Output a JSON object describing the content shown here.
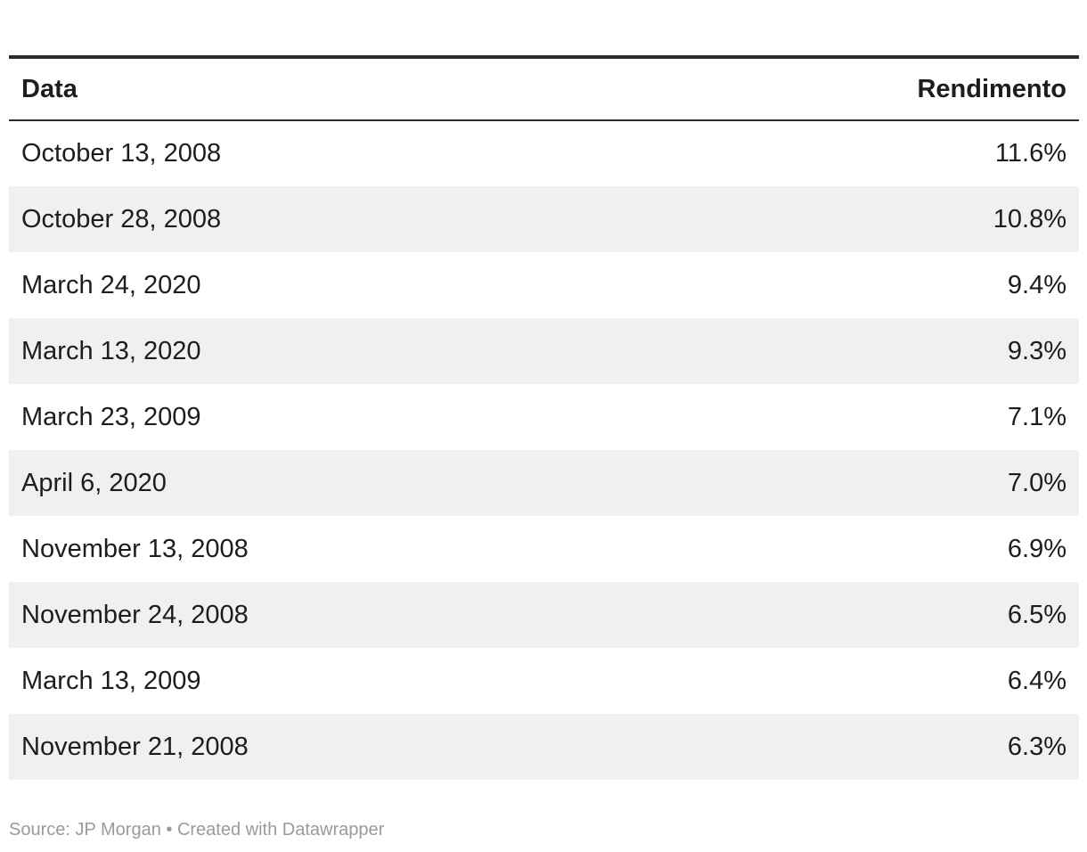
{
  "chart_data": {
    "type": "table",
    "columns": [
      {
        "label": "Data",
        "align": "left"
      },
      {
        "label": "Rendimento",
        "align": "right"
      }
    ],
    "rows": [
      {
        "date": "October 13, 2008",
        "value": "11.6%",
        "value_pct": 11.6
      },
      {
        "date": "October 28, 2008",
        "value": "10.8%",
        "value_pct": 10.8
      },
      {
        "date": "March 24, 2020",
        "value": "9.4%",
        "value_pct": 9.4
      },
      {
        "date": "March 13, 2020",
        "value": "9.3%",
        "value_pct": 9.3
      },
      {
        "date": "March 23, 2009",
        "value": "7.1%",
        "value_pct": 7.1
      },
      {
        "date": "April 6, 2020",
        "value": "7.0%",
        "value_pct": 7.0
      },
      {
        "date": "November 13, 2008",
        "value": "6.9%",
        "value_pct": 6.9
      },
      {
        "date": "November 24, 2008",
        "value": "6.5%",
        "value_pct": 6.5
      },
      {
        "date": "March 13, 2009",
        "value": "6.4%",
        "value_pct": 6.4
      },
      {
        "date": "November 21, 2008",
        "value": "6.3%",
        "value_pct": 6.3
      }
    ]
  },
  "footer": {
    "text": "Source: JP Morgan • Created with Datawrapper"
  },
  "colors": {
    "text": "#1d1d1d",
    "rule": "#2a2a2a",
    "stripe_row": "#f0f0f0",
    "footer_text": "#9a9a9a",
    "background": "#ffffff"
  }
}
